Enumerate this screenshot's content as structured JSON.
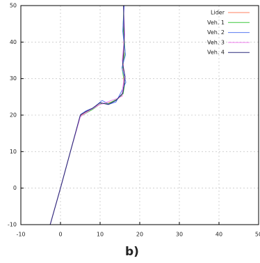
{
  "chart_data": {
    "type": "line",
    "caption": "b)",
    "xlim": [
      -10,
      50
    ],
    "ylim": [
      -10,
      50
    ],
    "xticks": [
      -10,
      0,
      10,
      20,
      30,
      40,
      50
    ],
    "yticks": [
      -10,
      0,
      10,
      20,
      30,
      40,
      50
    ],
    "grid": true,
    "legend": "top-right",
    "series": [
      {
        "name": "Lider",
        "color": "#ff8060",
        "x": [
          -2.6,
          0,
          2.5,
          5,
          6,
          8,
          10,
          12,
          14,
          15.5,
          16,
          15.8,
          16,
          15.9,
          16
        ],
        "values": [
          -10,
          0,
          10,
          19.8,
          20.6,
          21.8,
          23,
          23.3,
          24,
          25.5,
          28,
          32,
          38,
          44,
          50
        ]
      },
      {
        "name": "Veh. 1",
        "color": "#3cc83c",
        "x": [
          -2.6,
          0,
          2.5,
          5,
          6.2,
          8,
          10.3,
          12,
          14.2,
          15.8,
          16.2,
          15.6,
          16.3,
          15.8,
          16
        ],
        "values": [
          -10,
          0,
          10,
          19.6,
          20.4,
          21.5,
          23.2,
          23.1,
          24.3,
          25.8,
          28.5,
          32.5,
          37.5,
          44.5,
          50
        ]
      },
      {
        "name": "Veh. 2",
        "color": "#5a7cf0",
        "x": [
          -2.6,
          0,
          2.5,
          5.1,
          6.5,
          8.3,
          10.5,
          12.3,
          14,
          15.4,
          16.5,
          15.5,
          16.4,
          15.7,
          16.1
        ],
        "values": [
          -10,
          0,
          10,
          20.2,
          21.2,
          22,
          24,
          23,
          23.6,
          26.5,
          29,
          33,
          36.5,
          43,
          50
        ]
      },
      {
        "name": "Veh. 3",
        "color": "#f080f0",
        "x": [
          -2.6,
          0,
          2.5,
          5,
          5.8,
          7.8,
          9.8,
          11.8,
          14.4,
          15.6,
          15.7,
          16.2,
          15.6,
          16.2,
          15.9
        ],
        "values": [
          -10,
          0,
          10,
          19.5,
          20.2,
          21.6,
          22.8,
          23.6,
          24.6,
          25.2,
          27.5,
          31,
          35,
          42,
          50
        ]
      },
      {
        "name": "Veh. 4",
        "color": "#2a2a7a",
        "x": [
          -2.6,
          0,
          2.5,
          5,
          6.3,
          8.1,
          10,
          12.1,
          14.1,
          15.7,
          15.9,
          16.3,
          15.7,
          16.1,
          15.9
        ],
        "values": [
          -10,
          0,
          10,
          20,
          20.9,
          21.9,
          23.4,
          22.9,
          24.1,
          26,
          27,
          30.5,
          34,
          40,
          50
        ]
      }
    ]
  }
}
